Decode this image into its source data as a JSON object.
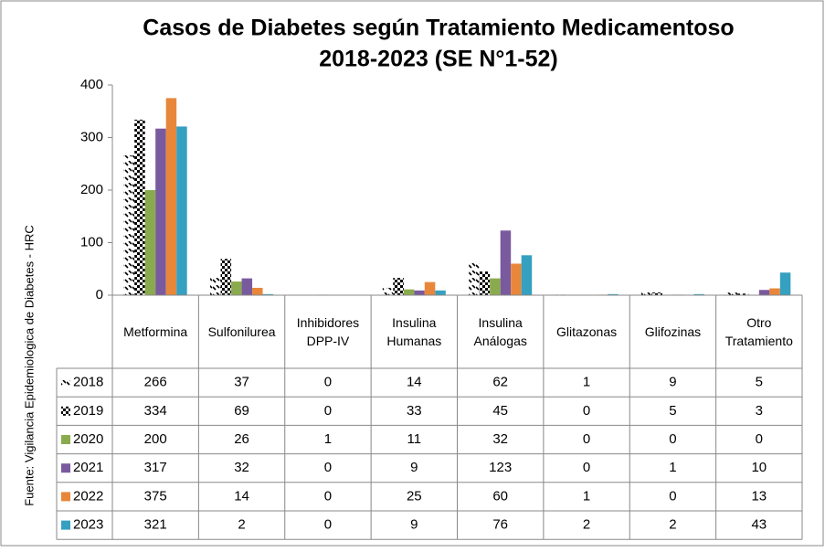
{
  "chart_data": {
    "type": "bar",
    "title": [
      "Casos de Diabetes según Tratamiento Medicamentoso",
      "2018-2023 (SE N°1-52)"
    ],
    "y_axis_label": "Fuente: Vigilancia Epidemiologica de Diabetes - HRC",
    "categories": [
      "Metformina",
      "Sulfonilurea",
      "Inhibidores DPP-IV",
      "Insulina Humanas",
      "Insulina Análogas",
      "Glitazonas",
      "Glifozinas",
      "Otro Tratamiento"
    ],
    "series": [
      {
        "name": "2018",
        "color": "#000000",
        "pattern": "hatch",
        "values": [
          266,
          37,
          0,
          14,
          62,
          1,
          9,
          5
        ]
      },
      {
        "name": "2019",
        "color": "#000000",
        "pattern": "check",
        "values": [
          334,
          69,
          0,
          33,
          45,
          0,
          5,
          3
        ]
      },
      {
        "name": "2020",
        "color": "#8aab4d",
        "values": [
          200,
          26,
          1,
          11,
          32,
          0,
          0,
          0
        ]
      },
      {
        "name": "2021",
        "color": "#7a5a9e",
        "values": [
          317,
          32,
          0,
          9,
          123,
          0,
          1,
          10
        ]
      },
      {
        "name": "2022",
        "color": "#e8873a",
        "values": [
          375,
          14,
          0,
          25,
          60,
          1,
          0,
          13
        ]
      },
      {
        "name": "2023",
        "color": "#35a0c0",
        "values": [
          321,
          2,
          0,
          9,
          76,
          2,
          2,
          43
        ]
      }
    ],
    "ylim": [
      0,
      400
    ],
    "yticks": [
      0,
      100,
      200,
      300,
      400
    ],
    "grid": false,
    "data_table": true
  }
}
